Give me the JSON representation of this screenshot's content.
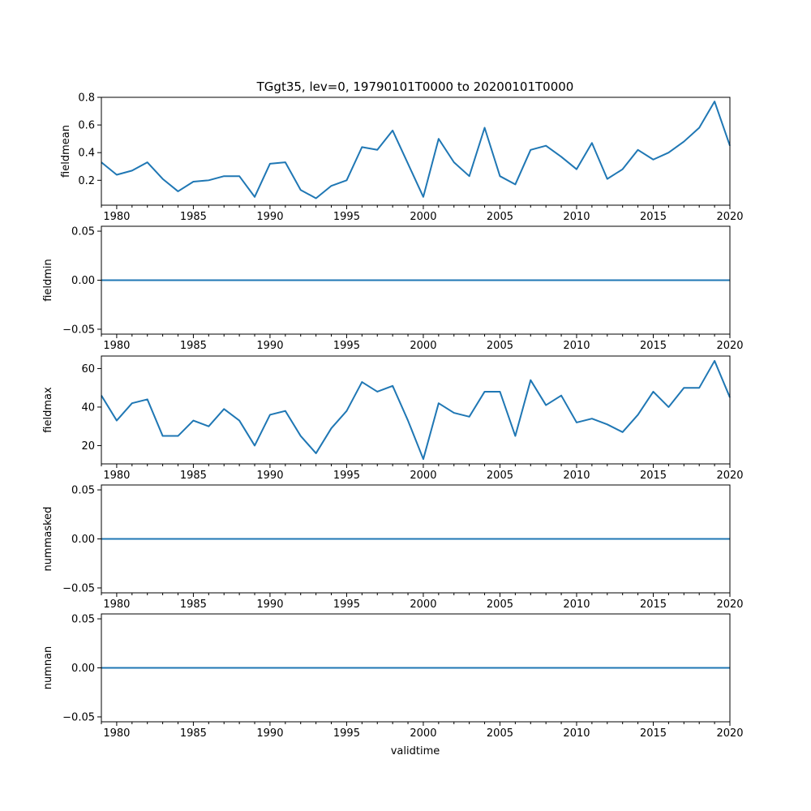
{
  "title": "TGgt35, lev=0, 19790101T0000 to 20200101T0000",
  "xlabel": "validtime",
  "x_tick_labels": [
    "1980",
    "1985",
    "1990",
    "1995",
    "2000",
    "2005",
    "2010",
    "2015",
    "2020"
  ],
  "series_color": "#1f77b4",
  "chart_data": [
    {
      "type": "line",
      "ylabel": "fieldmean",
      "xlim": [
        1979,
        2020
      ],
      "ylim": [
        0.02,
        0.8
      ],
      "y_ticks": [
        0.2,
        0.4,
        0.6,
        0.8
      ],
      "y_tick_labels": [
        "0.2",
        "0.4",
        "0.6",
        "0.8"
      ],
      "x": [
        1979,
        1980,
        1981,
        1982,
        1983,
        1984,
        1985,
        1986,
        1987,
        1988,
        1989,
        1990,
        1991,
        1992,
        1993,
        1994,
        1995,
        1996,
        1997,
        1998,
        1999,
        2000,
        2001,
        2002,
        2003,
        2004,
        2005,
        2006,
        2007,
        2008,
        2009,
        2010,
        2011,
        2012,
        2013,
        2014,
        2015,
        2016,
        2017,
        2018,
        2019,
        2020
      ],
      "values": [
        0.33,
        0.24,
        0.27,
        0.33,
        0.21,
        0.12,
        0.19,
        0.2,
        0.23,
        0.23,
        0.08,
        0.32,
        0.33,
        0.13,
        0.07,
        0.16,
        0.2,
        0.44,
        0.42,
        0.56,
        0.32,
        0.08,
        0.5,
        0.33,
        0.23,
        0.58,
        0.23,
        0.17,
        0.42,
        0.45,
        0.37,
        0.28,
        0.47,
        0.21,
        0.28,
        0.42,
        0.35,
        0.4,
        0.48,
        0.58,
        0.77,
        0.45
      ]
    },
    {
      "type": "line",
      "ylabel": "fieldmin",
      "xlim": [
        1979,
        2020
      ],
      "ylim": [
        -0.055,
        0.055
      ],
      "y_ticks": [
        -0.05,
        0.0,
        0.05
      ],
      "y_tick_labels": [
        "−0.05",
        "0.00",
        "0.05"
      ],
      "x": [
        1979,
        2020
      ],
      "values": [
        0,
        0
      ]
    },
    {
      "type": "line",
      "ylabel": "fieldmax",
      "xlim": [
        1979,
        2020
      ],
      "ylim": [
        10.5,
        66.5
      ],
      "y_ticks": [
        20,
        40,
        60
      ],
      "y_tick_labels": [
        "20",
        "40",
        "60"
      ],
      "x": [
        1979,
        1980,
        1981,
        1982,
        1983,
        1984,
        1985,
        1986,
        1987,
        1988,
        1989,
        1990,
        1991,
        1992,
        1993,
        1994,
        1995,
        1996,
        1997,
        1998,
        1999,
        2000,
        2001,
        2002,
        2003,
        2004,
        2005,
        2006,
        2007,
        2008,
        2009,
        2010,
        2011,
        2012,
        2013,
        2014,
        2015,
        2016,
        2017,
        2018,
        2019,
        2020
      ],
      "values": [
        46,
        33,
        42,
        44,
        25,
        25,
        33,
        30,
        39,
        33,
        20,
        36,
        38,
        25,
        16,
        29,
        38,
        53,
        48,
        51,
        33,
        13,
        42,
        37,
        35,
        48,
        48,
        25,
        54,
        41,
        46,
        32,
        34,
        31,
        27,
        36,
        48,
        40,
        50,
        50,
        64,
        45
      ]
    },
    {
      "type": "line",
      "ylabel": "nummasked",
      "xlim": [
        1979,
        2020
      ],
      "ylim": [
        -0.055,
        0.055
      ],
      "y_ticks": [
        -0.05,
        0.0,
        0.05
      ],
      "y_tick_labels": [
        "−0.05",
        "0.00",
        "0.05"
      ],
      "x": [
        1979,
        2020
      ],
      "values": [
        0,
        0
      ]
    },
    {
      "type": "line",
      "ylabel": "numnan",
      "xlim": [
        1979,
        2020
      ],
      "ylim": [
        -0.055,
        0.055
      ],
      "y_ticks": [
        -0.05,
        0.0,
        0.05
      ],
      "y_tick_labels": [
        "−0.05",
        "0.00",
        "0.05"
      ],
      "x": [
        1979,
        2020
      ],
      "values": [
        0,
        0
      ]
    }
  ]
}
